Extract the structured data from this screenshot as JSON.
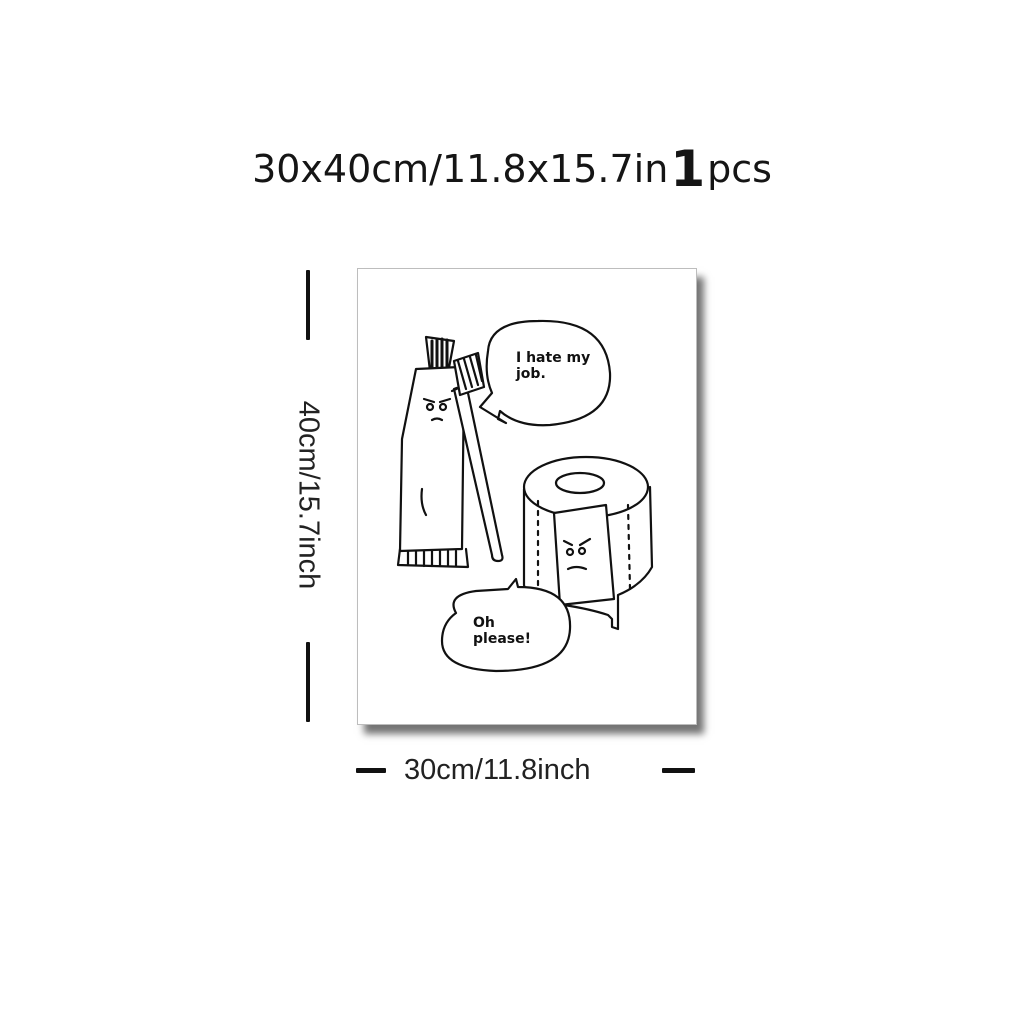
{
  "headline": {
    "size_text": "30x40cm/11.8x15.7in",
    "quantity": "1",
    "unit": "pcs"
  },
  "poster": {
    "bubble_top": "I hate my job.",
    "bubble_bottom": "Oh please!"
  },
  "dimensions": {
    "height_label": "40cm/15.7inch",
    "width_label": "30cm/11.8inch"
  }
}
